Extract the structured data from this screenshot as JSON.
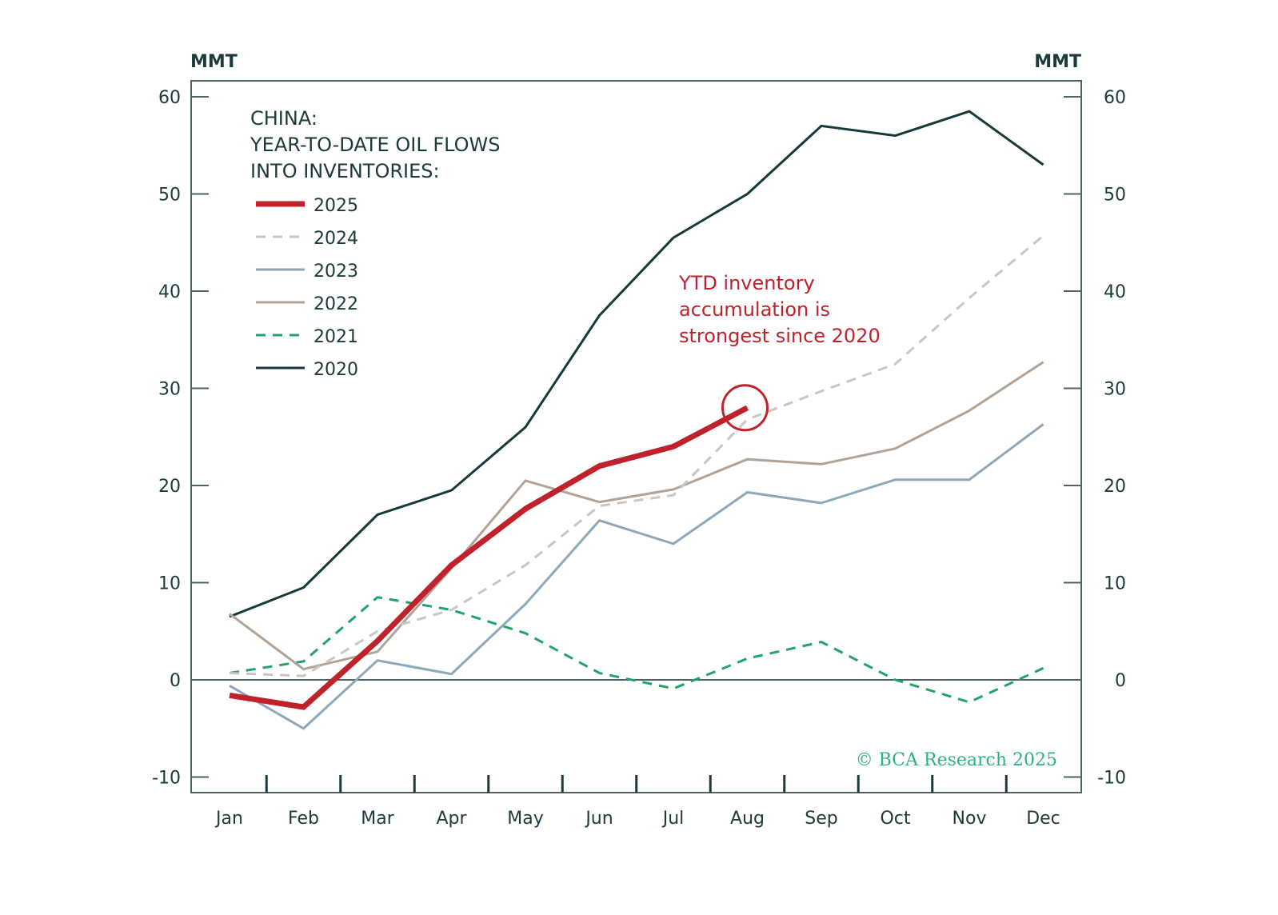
{
  "chart_data": {
    "type": "line",
    "title": "CHINA: YEAR-TO-DATE OIL FLOWS INTO INVENTORIES:",
    "title_lines": [
      "CHINA:",
      "YEAR-TO-DATE OIL FLOWS",
      "INTO INVENTORIES:"
    ],
    "xlabel": "",
    "ylabel_left": "MMT",
    "ylabel_right": "MMT",
    "ylim": [
      -10,
      60
    ],
    "yticks": [
      -10,
      0,
      10,
      20,
      30,
      40,
      50,
      60
    ],
    "categories": [
      "Jan",
      "Feb",
      "Mar",
      "Apr",
      "May",
      "Jun",
      "Jul",
      "Aug",
      "Sep",
      "Oct",
      "Nov",
      "Dec"
    ],
    "grid": false,
    "zero_line": true,
    "legend_position": "top-left",
    "series": [
      {
        "name": "2020",
        "color": "#17393a",
        "style": "solid",
        "values": [
          6.5,
          9.5,
          17.0,
          19.5,
          26.0,
          37.5,
          45.5,
          50.0,
          57.0,
          56.0,
          58.5,
          53.0
        ]
      },
      {
        "name": "2021",
        "color": "#22a36c",
        "style": "dashed",
        "values": [
          0.7,
          1.9,
          8.5,
          7.2,
          4.8,
          0.7,
          -0.9,
          2.2,
          3.9,
          0.0,
          -2.3,
          1.2
        ]
      },
      {
        "name": "2022",
        "color": "#b3a397",
        "style": "solid",
        "values": [
          6.8,
          1.1,
          2.9,
          11.5,
          20.5,
          18.3,
          19.6,
          22.7,
          22.2,
          23.8,
          27.7,
          32.7
        ]
      },
      {
        "name": "2023",
        "color": "#8ea8b8",
        "style": "solid",
        "values": [
          -0.6,
          -5.0,
          2.0,
          0.6,
          7.8,
          16.4,
          14.0,
          19.3,
          18.2,
          20.6,
          20.6,
          26.3
        ]
      },
      {
        "name": "2024",
        "color": "#c9c6c3",
        "style": "dashed",
        "values": [
          0.7,
          0.4,
          5.0,
          7.2,
          11.8,
          17.9,
          19.0,
          26.8,
          29.7,
          32.5,
          39.3,
          45.7
        ]
      },
      {
        "name": "2025",
        "color": "#c0222c",
        "style": "solid-thick",
        "values": [
          -1.6,
          -2.8,
          4.0,
          11.8,
          17.6,
          22.0,
          24.0,
          28.0,
          null,
          null,
          null,
          null
        ]
      }
    ],
    "legend": [
      {
        "name": "2025",
        "color": "#c0222c",
        "style": "solid-thick"
      },
      {
        "name": "2024",
        "color": "#c9c6c3",
        "style": "dashed"
      },
      {
        "name": "2023",
        "color": "#8ea8b8",
        "style": "solid"
      },
      {
        "name": "2022",
        "color": "#b3a397",
        "style": "solid"
      },
      {
        "name": "2021",
        "color": "#22a36c",
        "style": "dashed"
      },
      {
        "name": "2020",
        "color": "#17393a",
        "style": "solid"
      }
    ],
    "annotations": [
      {
        "text_lines": [
          "YTD inventory",
          "accumulation is",
          "strongest since 2020"
        ],
        "color": "#c0222c",
        "highlight": {
          "category": "Aug",
          "value": 28.0,
          "shape": "circle"
        }
      }
    ],
    "credit": "© BCA Research 2025",
    "credit_color": "#2db37c"
  }
}
